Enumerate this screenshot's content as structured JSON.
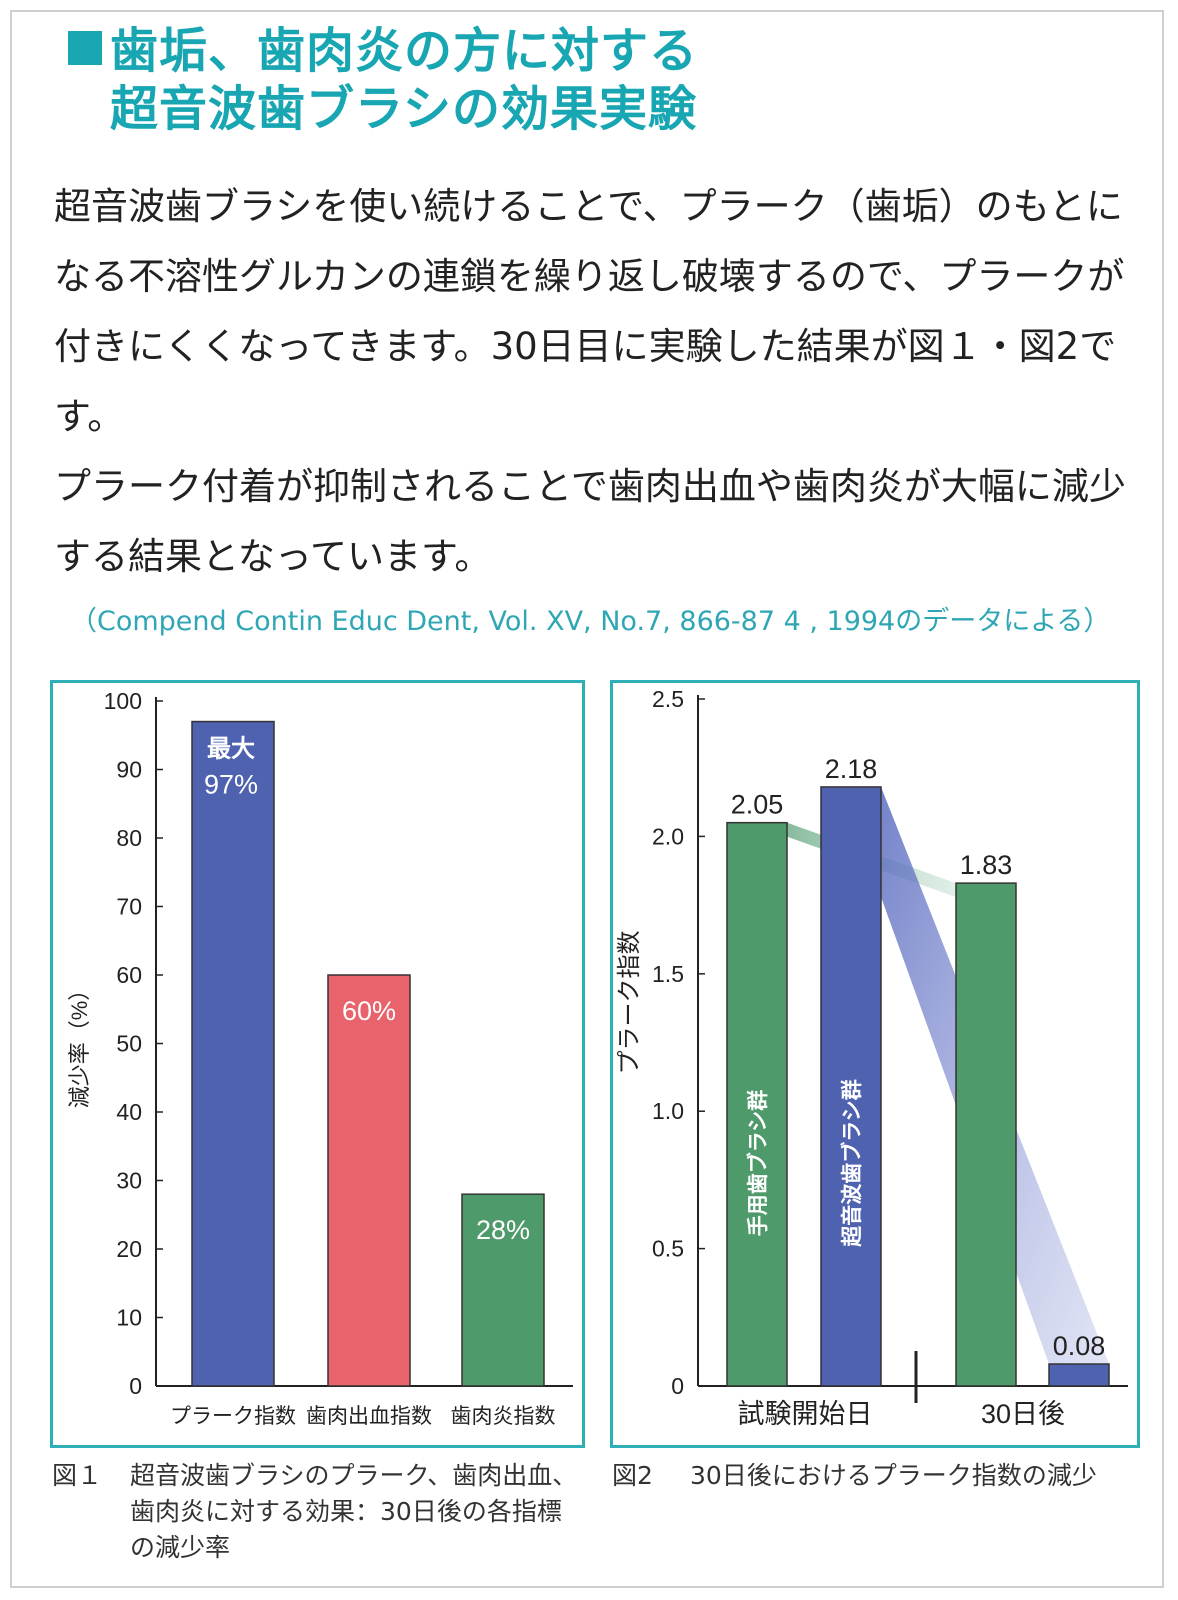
{
  "title": {
    "line1": "歯垢、歯肉炎の方に対する",
    "line2": "超音波歯ブラシの効果実験"
  },
  "body": {
    "paragraph1": "超音波歯ブラシを使い続けることで、プラーク（歯垢）のもとになる不溶性グルカンの連鎖を繰り返し破壊するので、プラークが付きにくくなってきます。30日目に実験した結果が図１・図2です。",
    "paragraph2": "プラーク付着が抑制されることで歯肉出血や歯肉炎が大幅に減少する結果となっています。"
  },
  "citation": "（Compend Contin Educ Dent, Vol. XV, No.7, 866-87 4 , 1994のデータによる）",
  "colors": {
    "accent": "#17a6b2",
    "panel_border": "#2eb0b6",
    "blue_bar": "#4f62b0",
    "red_bar": "#e8636b",
    "green_bar": "#4f9a6a"
  },
  "figure1": {
    "caption_num": "図１",
    "caption_text": "超音波歯ブラシのプラーク、歯肉出血、歯肉炎に対する効果：30日後の各指標の減少率"
  },
  "figure2": {
    "caption_num": "図2",
    "caption_text": "30日後におけるプラーク指数の減少"
  },
  "chart_data": [
    {
      "type": "bar",
      "title": "",
      "ylabel": "減少率（%）",
      "ylim": [
        0,
        100
      ],
      "yticks": [
        0,
        10,
        20,
        30,
        40,
        50,
        60,
        70,
        80,
        90,
        100
      ],
      "categories": [
        "プラーク指数",
        "歯肉出血指数",
        "歯肉炎指数"
      ],
      "values": [
        97,
        60,
        28
      ],
      "value_labels": [
        "97%",
        "60%",
        "28%"
      ],
      "value_sublabels": [
        "最大",
        "",
        ""
      ],
      "colors": [
        "#4f62b0",
        "#e8636b",
        "#4f9a6a"
      ]
    },
    {
      "type": "bar",
      "title": "",
      "ylabel": "プラーク指数",
      "ylim": [
        0,
        2.5
      ],
      "yticks": [
        0,
        0.5,
        1.0,
        1.5,
        2.0,
        2.5
      ],
      "ytick_labels": [
        "0",
        "0.5",
        "1.0",
        "1.5",
        "2.0",
        "2.5"
      ],
      "groups": [
        "試験開始日",
        "30日後"
      ],
      "series": [
        {
          "name": "手用歯ブラシ群",
          "values": [
            2.05,
            1.83
          ],
          "value_labels": [
            "2.05",
            "1.83"
          ],
          "color": "#4f9a6a"
        },
        {
          "name": "超音波歯ブラシ群",
          "values": [
            2.18,
            0.08
          ],
          "value_labels": [
            "2.18",
            "0.08"
          ],
          "color": "#4f62b0"
        }
      ]
    }
  ]
}
